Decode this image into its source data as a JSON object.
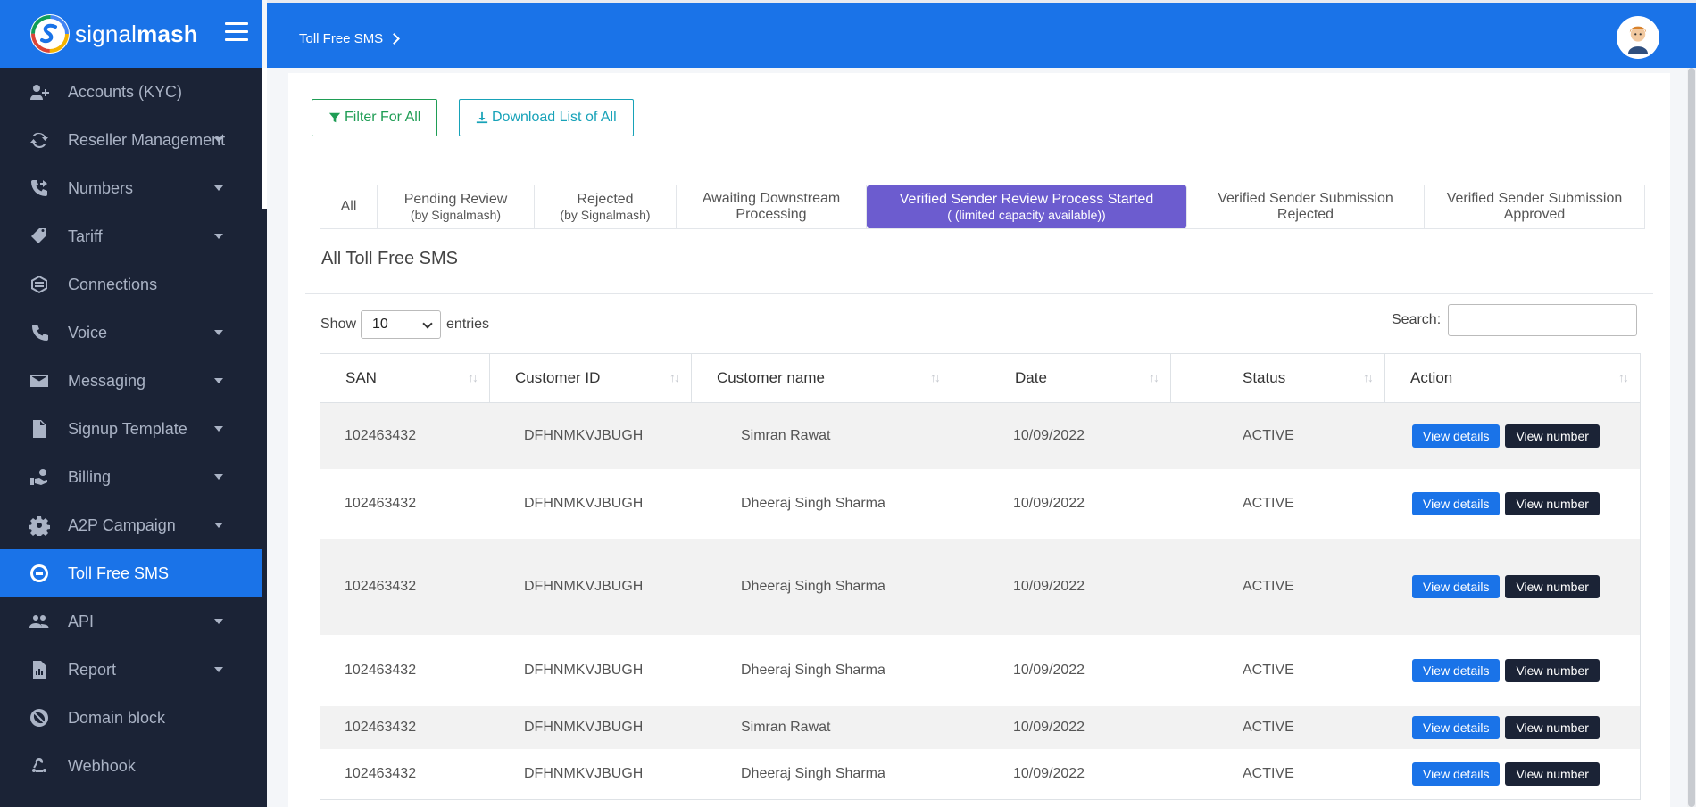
{
  "brand": {
    "name_light": "signal",
    "name_bold": "mash"
  },
  "header": {
    "breadcrumb": "Toll Free SMS"
  },
  "sidebar": {
    "items": [
      {
        "label": "Accounts (KYC)",
        "icon": "user-plus-icon",
        "caret": false
      },
      {
        "label": "Reseller Management",
        "icon": "refresh-icon",
        "caret": true
      },
      {
        "label": "Numbers",
        "icon": "phone-forward-icon",
        "caret": true
      },
      {
        "label": "Tariff",
        "icon": "tag-icon",
        "caret": true
      },
      {
        "label": "Connections",
        "icon": "network-icon",
        "caret": false
      },
      {
        "label": "Voice",
        "icon": "phone-icon",
        "caret": true
      },
      {
        "label": "Messaging",
        "icon": "envelope-icon",
        "caret": true
      },
      {
        "label": "Signup Template",
        "icon": "file-icon",
        "caret": true
      },
      {
        "label": "Billing",
        "icon": "hand-coin-icon",
        "caret": true
      },
      {
        "label": "A2P Campaign",
        "icon": "gear-icon",
        "caret": true
      },
      {
        "label": "Toll Free SMS",
        "icon": "toll-free-icon",
        "caret": false,
        "active": true
      },
      {
        "label": "API",
        "icon": "users-icon",
        "caret": true
      },
      {
        "label": "Report",
        "icon": "report-icon",
        "caret": true
      },
      {
        "label": "Domain block",
        "icon": "ban-icon",
        "caret": false
      },
      {
        "label": "Webhook",
        "icon": "webhook-icon",
        "caret": false
      }
    ]
  },
  "toolbar": {
    "filter_label": "Filter For All",
    "download_label": "Download List of All"
  },
  "tabs": [
    {
      "line1": "All",
      "line2": ""
    },
    {
      "line1": "Pending Review",
      "line2": "(by Signalmash)"
    },
    {
      "line1": "Rejected",
      "line2": "(by Signalmash)"
    },
    {
      "line1": "Awaiting Downstream",
      "line2": "Processing"
    },
    {
      "line1": "Verified Sender Review Process Started",
      "line2": "( (limited capacity available))",
      "active": true
    },
    {
      "line1": "Verified Sender Submission",
      "line2": "Rejected"
    },
    {
      "line1": "Verified Sender Submission",
      "line2": "Approved"
    }
  ],
  "section_title": "All Toll Free SMS",
  "length": {
    "show_label": "Show",
    "value": "10",
    "entries_label": "entries"
  },
  "search": {
    "label": "Search:",
    "value": ""
  },
  "table": {
    "columns": [
      "SAN",
      "Customer ID",
      "Customer name",
      "Date",
      "Status",
      "Action"
    ],
    "rows": [
      {
        "san": "102463432",
        "customer_id": "DFHNMKVJBUGH",
        "name": "Simran Rawat",
        "date": "10/09/2022",
        "status": "ACTIVE"
      },
      {
        "san": "102463432",
        "customer_id": "DFHNMKVJBUGH",
        "name": "Dheeraj Singh Sharma",
        "date": "10/09/2022",
        "status": "ACTIVE"
      },
      {
        "san": "102463432",
        "customer_id": "DFHNMKVJBUGH",
        "name": "Dheeraj Singh Sharma",
        "date": "10/09/2022",
        "status": "ACTIVE"
      },
      {
        "san": "102463432",
        "customer_id": "DFHNMKVJBUGH",
        "name": "Dheeraj Singh Sharma",
        "date": "10/09/2022",
        "status": "ACTIVE"
      },
      {
        "san": "102463432",
        "customer_id": "DFHNMKVJBUGH",
        "name": "Simran Rawat",
        "date": "10/09/2022",
        "status": "ACTIVE"
      },
      {
        "san": "102463432",
        "customer_id": "DFHNMKVJBUGH",
        "name": "Dheeraj Singh Sharma",
        "date": "10/09/2022",
        "status": "ACTIVE"
      }
    ],
    "view_details_label": "View details",
    "view_number_label": "View number"
  },
  "colors": {
    "primary": "#1a73e8",
    "sidebar": "#1b2336",
    "active_tab": "#6c5ccf",
    "filter_green": "#1f9d55",
    "download_teal": "#17a2b8"
  }
}
